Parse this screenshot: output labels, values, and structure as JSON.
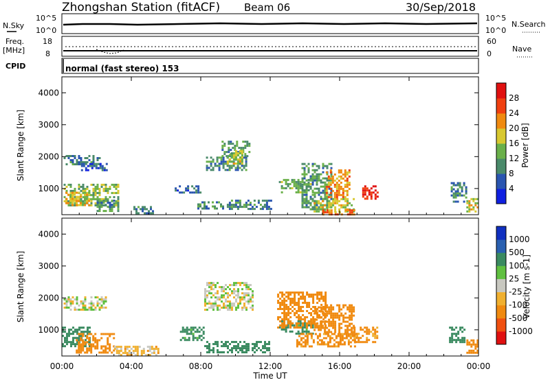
{
  "header": {
    "station_title": "Zhongshan Station (fitACF)",
    "beam": "Beam 06",
    "date": "30/Sep/2018"
  },
  "status_panels": {
    "nsky_label": "N.Sky",
    "nsky_ticks": [
      "10^5",
      "10^0"
    ],
    "nsearch_label": "N.Search",
    "nsearch_ticks": [
      "10^5",
      "10^0"
    ],
    "freq_label_1": "Freq.",
    "freq_label_2": "[MHz]",
    "freq_ticks": [
      "18",
      "8"
    ],
    "nave_label": "Nave",
    "nave_ticks": [
      "60",
      "0"
    ],
    "cpid_label": "CPID",
    "cpid_value": "normal (fast stereo) 153"
  },
  "colors": {
    "power_scale": [
      "#1020e0",
      "#2a55b0",
      "#4a8a6a",
      "#6ab04a",
      "#d8c830",
      "#f08a10",
      "#f04010",
      "#e01010"
    ],
    "velocity_scale": [
      "#e01010",
      "#f05010",
      "#f08a10",
      "#f0b030",
      "#c8c8c0",
      "#60c040",
      "#3a8a60",
      "#2a60b0",
      "#1030c0"
    ]
  },
  "chart_data": [
    {
      "type": "heatmap",
      "title": "",
      "xlabel": "",
      "ylabel": "Slant Range [km]",
      "colorbar_label": "Power [dB]",
      "colorbar_ticks": [
        "28",
        "24",
        "20",
        "16",
        "12",
        "8",
        "4"
      ],
      "colorbar_range": [
        0,
        30
      ],
      "ylim": [
        180,
        4500
      ],
      "y_ticks": [
        "4000",
        "3000",
        "2000",
        "1000"
      ],
      "xlim": [
        0,
        24
      ],
      "x_ticks": [
        "00:00",
        "04:00",
        "08:00",
        "12:00",
        "16:00",
        "20:00",
        "00:00"
      ],
      "regions": [
        {
          "t": [
            0.1,
            2.2
          ],
          "r": [
            1750,
            2050
          ],
          "v": 8
        },
        {
          "t": [
            1.1,
            2.6
          ],
          "r": [
            1550,
            1800
          ],
          "v": 6
        },
        {
          "t": [
            0.1,
            3.3
          ],
          "r": [
            500,
            1150
          ],
          "v": 13
        },
        {
          "t": [
            0.2,
            1.6
          ],
          "r": [
            450,
            900
          ],
          "v": 18
        },
        {
          "t": [
            2.0,
            3.2
          ],
          "r": [
            300,
            650
          ],
          "v": 10
        },
        {
          "t": [
            4.0,
            5.3
          ],
          "r": [
            250,
            450
          ],
          "v": 8
        },
        {
          "t": [
            6.5,
            8.0
          ],
          "r": [
            900,
            1100
          ],
          "v": 7
        },
        {
          "t": [
            8.3,
            10.6
          ],
          "r": [
            1600,
            2000
          ],
          "v": 9
        },
        {
          "t": [
            9.2,
            10.8
          ],
          "r": [
            2000,
            2500
          ],
          "v": 10
        },
        {
          "t": [
            9.5,
            10.4
          ],
          "r": [
            1800,
            2200
          ],
          "v": 15
        },
        {
          "t": [
            7.8,
            9.3
          ],
          "r": [
            350,
            600
          ],
          "v": 10
        },
        {
          "t": [
            9.5,
            12.1
          ],
          "r": [
            350,
            650
          ],
          "v": 9
        },
        {
          "t": [
            12.5,
            14.5
          ],
          "r": [
            900,
            1300
          ],
          "v": 12
        },
        {
          "t": [
            13.8,
            15.5
          ],
          "r": [
            350,
            1800
          ],
          "v": 10
        },
        {
          "t": [
            14.5,
            16.8
          ],
          "r": [
            300,
            700
          ],
          "v": 16
        },
        {
          "t": [
            15.2,
            16.6
          ],
          "r": [
            750,
            1600
          ],
          "v": 20
        },
        {
          "t": [
            15.0,
            16.8
          ],
          "r": [
            180,
            350
          ],
          "v": 22
        },
        {
          "t": [
            17.3,
            18.2
          ],
          "r": [
            650,
            1100
          ],
          "v": 27
        },
        {
          "t": [
            22.4,
            23.3
          ],
          "r": [
            600,
            1200
          ],
          "v": 9
        },
        {
          "t": [
            23.3,
            24.0
          ],
          "r": [
            250,
            700
          ],
          "v": 16
        }
      ]
    },
    {
      "type": "heatmap",
      "title": "",
      "xlabel": "Time UT",
      "ylabel": "Slant Range [km]",
      "colorbar_label": "Velocity [m s-1]",
      "colorbar_ticks": [
        "1000",
        "500",
        "100",
        "25",
        "-25",
        "-100",
        "-500",
        "-1000"
      ],
      "colorbar_range": [
        -1200,
        1200
      ],
      "ylim": [
        180,
        4500
      ],
      "y_ticks": [
        "4000",
        "3000",
        "2000",
        "1000"
      ],
      "xlim": [
        0,
        24
      ],
      "x_ticks": [
        "00:00",
        "04:00",
        "08:00",
        "12:00",
        "16:00",
        "20:00",
        "00:00"
      ],
      "regions": [
        {
          "t": [
            0.1,
            2.5
          ],
          "r": [
            1600,
            2050
          ],
          "v": 0
        },
        {
          "t": [
            0.0,
            1.6
          ],
          "r": [
            500,
            1100
          ],
          "v": 300
        },
        {
          "t": [
            0.8,
            3.0
          ],
          "r": [
            300,
            900
          ],
          "v": -200
        },
        {
          "t": [
            3.0,
            5.5
          ],
          "r": [
            200,
            500
          ],
          "v": -60
        },
        {
          "t": [
            6.8,
            8.2
          ],
          "r": [
            700,
            1100
          ],
          "v": 150
        },
        {
          "t": [
            8.2,
            11.0
          ],
          "r": [
            1600,
            2500
          ],
          "v": 0
        },
        {
          "t": [
            8.2,
            12.0
          ],
          "r": [
            300,
            650
          ],
          "v": 200
        },
        {
          "t": [
            12.5,
            14.5
          ],
          "r": [
            900,
            1300
          ],
          "v": 150
        },
        {
          "t": [
            12.4,
            15.2
          ],
          "r": [
            1100,
            2200
          ],
          "v": -200
        },
        {
          "t": [
            13.5,
            17.0
          ],
          "r": [
            450,
            900
          ],
          "v": -150
        },
        {
          "t": [
            14.5,
            16.8
          ],
          "r": [
            900,
            1800
          ],
          "v": -250
        },
        {
          "t": [
            16.8,
            18.2
          ],
          "r": [
            600,
            1100
          ],
          "v": -120
        },
        {
          "t": [
            22.3,
            23.2
          ],
          "r": [
            600,
            1100
          ],
          "v": 300
        },
        {
          "t": [
            23.3,
            24.0
          ],
          "r": [
            300,
            700
          ],
          "v": -200
        }
      ]
    }
  ]
}
